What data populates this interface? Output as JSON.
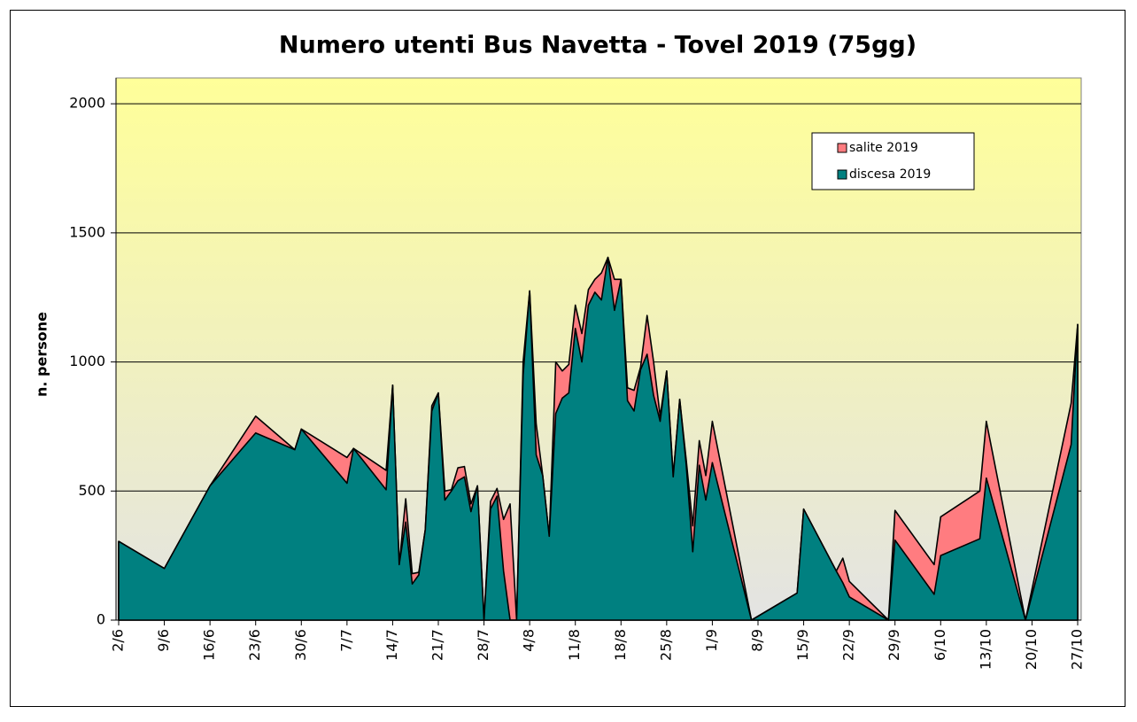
{
  "chart_data": {
    "type": "area",
    "title": "Numero utenti Bus Navetta - Tovel 2019 (75gg)",
    "y_label": "n. persone",
    "x": [
      "2/6",
      "9/6",
      "16/6",
      "23/6",
      "29/6",
      "30/6",
      "7/7",
      "8/7",
      "13/7",
      "14/7",
      "15/7",
      "16/7",
      "17/7",
      "18/7",
      "19/7",
      "20/7",
      "21/7",
      "22/7",
      "23/7",
      "24/7",
      "25/7",
      "26/7",
      "27/7",
      "28/7",
      "29/7",
      "30/7",
      "31/7",
      "1/8",
      "2/8",
      "3/8",
      "4/8",
      "5/8",
      "6/8",
      "7/8",
      "8/8",
      "9/8",
      "10/8",
      "11/8",
      "12/8",
      "13/8",
      "14/8",
      "15/8",
      "16/8",
      "17/8",
      "18/8",
      "19/8",
      "20/8",
      "21/8",
      "22/8",
      "23/8",
      "24/8",
      "25/8",
      "26/8",
      "27/8",
      "28/8",
      "29/8",
      "30/8",
      "31/8",
      "1/9",
      "7/9",
      "14/9",
      "15/9",
      "20/9",
      "21/9",
      "22/9",
      "28/9",
      "29/9",
      "5/10",
      "6/10",
      "12/10",
      "13/10",
      "19/10",
      "26/10",
      "27/10"
    ],
    "series": [
      {
        "name": "salite 2019",
        "color": "#ff7c80",
        "values": [
          305,
          200,
          520,
          790,
          660,
          740,
          630,
          665,
          580,
          910,
          215,
          470,
          180,
          185,
          350,
          830,
          880,
          500,
          505,
          590,
          595,
          450,
          520,
          0,
          460,
          510,
          390,
          450,
          0,
          1000,
          1275,
          760,
          560,
          325,
          1000,
          965,
          990,
          1220,
          1110,
          1280,
          1320,
          1345,
          1405,
          1320,
          1320,
          900,
          890,
          980,
          1180,
          1000,
          790,
          965,
          560,
          855,
          620,
          365,
          695,
          560,
          770,
          0,
          105,
          430,
          190,
          240,
          150,
          0,
          425,
          215,
          400,
          500,
          770,
          0,
          840,
          1145
        ]
      },
      {
        "name": "discesa 2019",
        "color": "#008080",
        "values": [
          305,
          200,
          520,
          725,
          660,
          740,
          530,
          665,
          505,
          910,
          215,
          380,
          140,
          175,
          350,
          810,
          880,
          465,
          500,
          540,
          555,
          420,
          520,
          0,
          430,
          480,
          190,
          0,
          0,
          950,
          1275,
          640,
          560,
          325,
          800,
          860,
          880,
          1130,
          1000,
          1220,
          1270,
          1240,
          1405,
          1200,
          1320,
          850,
          810,
          970,
          1030,
          870,
          770,
          965,
          555,
          855,
          600,
          265,
          600,
          465,
          610,
          0,
          105,
          430,
          190,
          145,
          90,
          0,
          310,
          100,
          250,
          315,
          550,
          0,
          680,
          1145
        ]
      }
    ],
    "xlim": [
      "2/6",
      "27/10"
    ],
    "xticks": [
      "2/6",
      "9/6",
      "16/6",
      "23/6",
      "30/6",
      "7/7",
      "14/7",
      "21/7",
      "28/7",
      "4/8",
      "11/8",
      "18/8",
      "25/8",
      "1/9",
      "8/9",
      "15/9",
      "22/9",
      "29/9",
      "6/10",
      "13/10",
      "20/10",
      "27/10"
    ],
    "ylim": [
      0,
      2100
    ],
    "yticks": [
      0,
      500,
      1000,
      1500,
      2000
    ],
    "grid": true,
    "legend": "upper right"
  }
}
